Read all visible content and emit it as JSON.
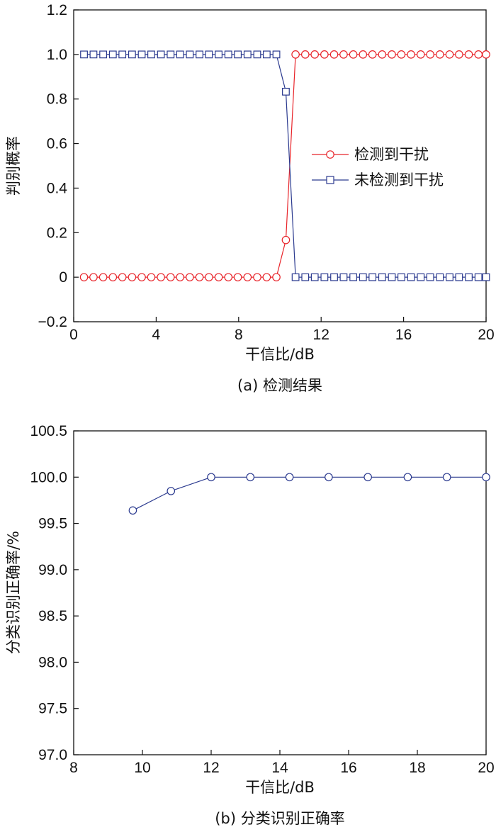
{
  "chart_data": [
    {
      "type": "line",
      "caption": "(a) 检测结果",
      "xlabel": "干信比/dB",
      "ylabel": "判别概率",
      "xlim": [
        0,
        20
      ],
      "ylim": [
        -0.2,
        1.2
      ],
      "xticks": [
        "0",
        "4",
        "8",
        "12",
        "16",
        "20"
      ],
      "yticks": [
        "−0.2",
        "0",
        "0.2",
        "0.4",
        "0.6",
        "0.8",
        "1.0",
        "1.2"
      ],
      "legend_position": "center-right",
      "series": [
        {
          "name": "检测到干扰",
          "color": "#e8242a",
          "marker": "circle",
          "x": [
            0.5,
            0.96,
            1.43,
            1.9,
            2.36,
            2.83,
            3.3,
            3.76,
            4.23,
            4.7,
            5.16,
            5.63,
            6.1,
            6.56,
            7.03,
            7.5,
            7.96,
            8.43,
            8.9,
            9.36,
            9.83,
            10.29,
            10.76,
            11.23,
            11.69,
            12.16,
            12.63,
            13.09,
            13.56,
            14.03,
            14.49,
            14.96,
            15.43,
            15.89,
            16.36,
            16.83,
            17.29,
            17.76,
            18.23,
            18.69,
            19.16,
            19.63,
            20.0
          ],
          "y": [
            0,
            0,
            0,
            0,
            0,
            0,
            0,
            0,
            0,
            0,
            0,
            0,
            0,
            0,
            0,
            0,
            0,
            0,
            0,
            0,
            0,
            0.167,
            1,
            1,
            1,
            1,
            1,
            1,
            1,
            1,
            1,
            1,
            1,
            1,
            1,
            1,
            1,
            1,
            1,
            1,
            1,
            1,
            1
          ]
        },
        {
          "name": "未检测到干扰",
          "color": "#2b3a8f",
          "marker": "square",
          "x": [
            0.5,
            0.96,
            1.43,
            1.9,
            2.36,
            2.83,
            3.3,
            3.76,
            4.23,
            4.7,
            5.16,
            5.63,
            6.1,
            6.56,
            7.03,
            7.5,
            7.96,
            8.43,
            8.9,
            9.36,
            9.83,
            10.29,
            10.76,
            11.23,
            11.69,
            12.16,
            12.63,
            13.09,
            13.56,
            14.03,
            14.49,
            14.96,
            15.43,
            15.89,
            16.36,
            16.83,
            17.29,
            17.76,
            18.23,
            18.69,
            19.16,
            19.63,
            20.0
          ],
          "y": [
            1,
            1,
            1,
            1,
            1,
            1,
            1,
            1,
            1,
            1,
            1,
            1,
            1,
            1,
            1,
            1,
            1,
            1,
            1,
            1,
            1,
            0.833,
            0,
            0,
            0,
            0,
            0,
            0,
            0,
            0,
            0,
            0,
            0,
            0,
            0,
            0,
            0,
            0,
            0,
            0,
            0,
            0,
            0
          ]
        }
      ]
    },
    {
      "type": "line",
      "caption": "(b) 分类识别正确率",
      "xlabel": "干信比/dB",
      "ylabel": "分类识别正确率/%",
      "xlim": [
        8,
        20
      ],
      "ylim": [
        97.0,
        100.5
      ],
      "xticks": [
        "8",
        "10",
        "12",
        "14",
        "16",
        "18",
        "20"
      ],
      "yticks": [
        "97.0",
        "97.5",
        "98.0",
        "98.5",
        "99.0",
        "99.5",
        "100.0",
        "100.5"
      ],
      "series": [
        {
          "color": "#2b3a8f",
          "marker": "circle",
          "x": [
            9.72,
            10.83,
            12.0,
            13.14,
            14.28,
            15.42,
            16.56,
            17.72,
            18.86,
            20.0
          ],
          "y": [
            99.64,
            99.85,
            100.0,
            100.0,
            100.0,
            100.0,
            100.0,
            100.0,
            100.0,
            100.0
          ]
        }
      ]
    }
  ]
}
